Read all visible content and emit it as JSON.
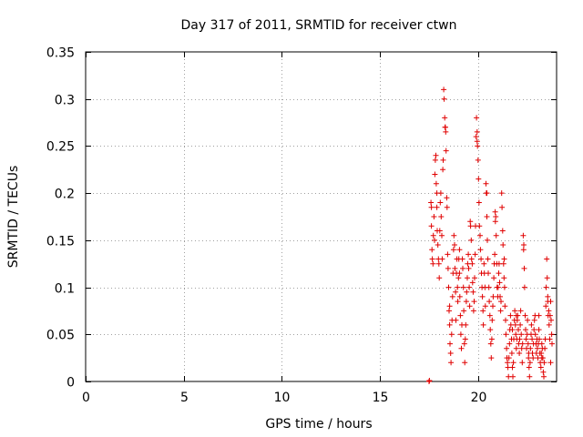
{
  "chart_data": {
    "type": "scatter",
    "title": "Day 317 of 2011, SRMTID for receiver ctwn",
    "xlabel": "GPS time / hours",
    "ylabel": "SRMTID / TECUs",
    "xlim": [
      0,
      24
    ],
    "ylim": [
      0,
      0.35
    ],
    "xticks": [
      0,
      5,
      10,
      15,
      20
    ],
    "xtick_labels": [
      "0",
      "5",
      "10",
      "15",
      "20"
    ],
    "yticks": [
      0,
      0.05,
      0.1,
      0.15,
      0.2,
      0.25,
      0.3,
      0.35
    ],
    "ytick_labels": [
      "0",
      "0.05",
      "0.1",
      "0.15",
      "0.2",
      "0.25",
      "0.3",
      "0.35"
    ],
    "grid": true,
    "marker": "+",
    "color": "#e00000",
    "series": [
      {
        "name": "SRMTID",
        "points": [
          [
            17.5,
            0.0
          ],
          [
            17.52,
            0.001
          ],
          [
            17.6,
            0.19
          ],
          [
            17.62,
            0.165
          ],
          [
            17.65,
            0.14
          ],
          [
            17.67,
            0.13
          ],
          [
            17.7,
            0.125
          ],
          [
            17.72,
            0.155
          ],
          [
            17.75,
            0.175
          ],
          [
            17.78,
            0.15
          ],
          [
            17.8,
            0.22
          ],
          [
            17.82,
            0.235
          ],
          [
            17.85,
            0.24
          ],
          [
            17.87,
            0.21
          ],
          [
            17.9,
            0.185
          ],
          [
            17.92,
            0.16
          ],
          [
            17.95,
            0.145
          ],
          [
            17.98,
            0.13
          ],
          [
            18.0,
            0.125
          ],
          [
            18.02,
            0.11
          ],
          [
            18.05,
            0.16
          ],
          [
            18.07,
            0.19
          ],
          [
            18.1,
            0.2
          ],
          [
            18.12,
            0.175
          ],
          [
            18.15,
            0.155
          ],
          [
            18.17,
            0.13
          ],
          [
            18.2,
            0.225
          ],
          [
            18.22,
            0.235
          ],
          [
            18.25,
            0.31
          ],
          [
            18.27,
            0.3
          ],
          [
            18.3,
            0.28
          ],
          [
            18.32,
            0.27
          ],
          [
            18.35,
            0.265
          ],
          [
            18.37,
            0.245
          ],
          [
            18.4,
            0.195
          ],
          [
            18.42,
            0.185
          ],
          [
            18.45,
            0.135
          ],
          [
            18.47,
            0.12
          ],
          [
            18.5,
            0.1
          ],
          [
            18.52,
            0.075
          ],
          [
            18.55,
            0.06
          ],
          [
            18.57,
            0.04
          ],
          [
            18.6,
            0.03
          ],
          [
            18.62,
            0.02
          ],
          [
            18.65,
            0.05
          ],
          [
            18.67,
            0.065
          ],
          [
            18.7,
            0.09
          ],
          [
            18.72,
            0.115
          ],
          [
            18.75,
            0.14
          ],
          [
            18.77,
            0.155
          ],
          [
            18.8,
            0.145
          ],
          [
            18.82,
            0.12
          ],
          [
            18.85,
            0.095
          ],
          [
            18.87,
            0.065
          ],
          [
            18.9,
            0.115
          ],
          [
            18.92,
            0.13
          ],
          [
            18.95,
            0.1
          ],
          [
            18.97,
            0.085
          ],
          [
            19.0,
            0.11
          ],
          [
            19.02,
            0.13
          ],
          [
            19.05,
            0.115
          ],
          [
            19.07,
            0.09
          ],
          [
            19.1,
            0.07
          ],
          [
            19.12,
            0.05
          ],
          [
            19.15,
            0.035
          ],
          [
            19.17,
            0.06
          ],
          [
            19.2,
            0.13
          ],
          [
            19.22,
            0.12
          ],
          [
            19.25,
            0.1
          ],
          [
            19.27,
            0.075
          ],
          [
            19.3,
            0.04
          ],
          [
            19.32,
            0.02
          ],
          [
            19.35,
            0.045
          ],
          [
            19.37,
            0.06
          ],
          [
            19.4,
            0.085
          ],
          [
            19.42,
            0.095
          ],
          [
            19.45,
            0.11
          ],
          [
            19.47,
            0.125
          ],
          [
            19.5,
            0.135
          ],
          [
            19.52,
            0.12
          ],
          [
            19.55,
            0.1
          ],
          [
            19.57,
            0.08
          ],
          [
            19.6,
            0.17
          ],
          [
            19.62,
            0.165
          ],
          [
            19.65,
            0.15
          ],
          [
            19.67,
            0.13
          ],
          [
            19.7,
            0.125
          ],
          [
            19.72,
            0.105
          ],
          [
            19.75,
            0.095
          ],
          [
            19.77,
            0.075
          ],
          [
            19.8,
            0.085
          ],
          [
            19.82,
            0.11
          ],
          [
            19.85,
            0.135
          ],
          [
            19.87,
            0.165
          ],
          [
            19.9,
            0.26
          ],
          [
            19.92,
            0.28
          ],
          [
            19.95,
            0.265
          ],
          [
            19.97,
            0.25
          ],
          [
            20.0,
            0.235
          ],
          [
            20.02,
            0.215
          ],
          [
            20.05,
            0.19
          ],
          [
            20.07,
            0.165
          ],
          [
            20.1,
            0.155
          ],
          [
            20.12,
            0.14
          ],
          [
            20.15,
            0.13
          ],
          [
            20.17,
            0.115
          ],
          [
            20.2,
            0.1
          ],
          [
            20.22,
            0.09
          ],
          [
            20.25,
            0.075
          ],
          [
            20.27,
            0.06
          ],
          [
            20.3,
            0.125
          ],
          [
            20.32,
            0.115
          ],
          [
            20.35,
            0.1
          ],
          [
            20.37,
            0.08
          ],
          [
            20.4,
            0.21
          ],
          [
            20.42,
            0.2
          ],
          [
            20.45,
            0.175
          ],
          [
            20.47,
            0.15
          ],
          [
            20.5,
            0.13
          ],
          [
            20.52,
            0.115
          ],
          [
            20.55,
            0.1
          ],
          [
            20.57,
            0.085
          ],
          [
            20.6,
            0.07
          ],
          [
            20.62,
            0.055
          ],
          [
            20.65,
            0.04
          ],
          [
            20.67,
            0.025
          ],
          [
            20.7,
            0.045
          ],
          [
            20.72,
            0.065
          ],
          [
            20.75,
            0.08
          ],
          [
            20.77,
            0.09
          ],
          [
            20.8,
            0.11
          ],
          [
            20.82,
            0.125
          ],
          [
            20.85,
            0.135
          ],
          [
            20.87,
            0.18
          ],
          [
            20.9,
            0.175
          ],
          [
            20.92,
            0.155
          ],
          [
            20.95,
            0.125
          ],
          [
            20.97,
            0.1
          ],
          [
            21.0,
            0.09
          ],
          [
            21.02,
            0.1
          ],
          [
            21.05,
            0.115
          ],
          [
            21.07,
            0.125
          ],
          [
            21.1,
            0.105
          ],
          [
            21.12,
            0.09
          ],
          [
            21.15,
            0.075
          ],
          [
            21.17,
            0.085
          ],
          [
            21.2,
            0.2
          ],
          [
            21.22,
            0.185
          ],
          [
            21.25,
            0.16
          ],
          [
            21.27,
            0.145
          ],
          [
            21.3,
            0.125
          ],
          [
            21.32,
            0.11
          ],
          [
            21.35,
            0.1
          ],
          [
            21.37,
            0.08
          ],
          [
            21.4,
            0.065
          ],
          [
            21.42,
            0.05
          ],
          [
            21.45,
            0.035
          ],
          [
            21.47,
            0.025
          ],
          [
            21.5,
            0.02
          ],
          [
            21.52,
            0.015
          ],
          [
            21.55,
            0.005
          ],
          [
            21.57,
            0.025
          ],
          [
            21.6,
            0.04
          ],
          [
            21.62,
            0.055
          ],
          [
            21.65,
            0.07
          ],
          [
            21.67,
            0.06
          ],
          [
            21.7,
            0.045
          ],
          [
            21.72,
            0.03
          ],
          [
            21.75,
            0.015
          ],
          [
            21.77,
            0.005
          ],
          [
            21.8,
            0.02
          ],
          [
            21.82,
            0.045
          ],
          [
            21.85,
            0.065
          ],
          [
            21.87,
            0.075
          ],
          [
            21.9,
            0.06
          ],
          [
            21.92,
            0.05
          ],
          [
            21.95,
            0.035
          ],
          [
            21.97,
            0.045
          ],
          [
            22.0,
            0.065
          ],
          [
            22.02,
            0.07
          ],
          [
            22.05,
            0.055
          ],
          [
            22.07,
            0.04
          ],
          [
            22.1,
            0.03
          ],
          [
            22.12,
            0.045
          ],
          [
            22.15,
            0.06
          ],
          [
            22.17,
            0.075
          ],
          [
            22.2,
            0.05
          ],
          [
            22.22,
            0.035
          ],
          [
            22.25,
            0.02
          ],
          [
            22.27,
            0.04
          ],
          [
            22.3,
            0.155
          ],
          [
            22.32,
            0.14
          ],
          [
            22.35,
            0.12
          ],
          [
            22.37,
            0.1
          ],
          [
            22.4,
            0.07
          ],
          [
            22.42,
            0.055
          ],
          [
            22.45,
            0.045
          ],
          [
            22.47,
            0.035
          ],
          [
            22.5,
            0.05
          ],
          [
            22.52,
            0.065
          ],
          [
            22.55,
            0.04
          ],
          [
            22.57,
            0.025
          ],
          [
            22.6,
            0.015
          ],
          [
            22.62,
            0.005
          ],
          [
            22.65,
            0.02
          ],
          [
            22.67,
            0.035
          ],
          [
            22.7,
            0.05
          ],
          [
            22.72,
            0.06
          ],
          [
            22.75,
            0.045
          ],
          [
            22.77,
            0.03
          ],
          [
            22.8,
            0.025
          ],
          [
            22.82,
            0.04
          ],
          [
            22.85,
            0.055
          ],
          [
            22.87,
            0.065
          ],
          [
            22.9,
            0.07
          ],
          [
            22.92,
            0.05
          ],
          [
            22.95,
            0.04
          ],
          [
            22.97,
            0.03
          ],
          [
            23.0,
            0.045
          ],
          [
            23.02,
            0.035
          ],
          [
            23.05,
            0.025
          ],
          [
            23.07,
            0.04
          ],
          [
            23.1,
            0.055
          ],
          [
            23.12,
            0.045
          ],
          [
            23.15,
            0.03
          ],
          [
            23.17,
            0.02
          ],
          [
            23.2,
            0.015
          ],
          [
            23.22,
            0.03
          ],
          [
            23.25,
            0.04
          ],
          [
            23.27,
            0.035
          ],
          [
            23.3,
            0.025
          ],
          [
            23.32,
            0.01
          ],
          [
            23.35,
            0.005
          ],
          [
            23.37,
            0.02
          ],
          [
            23.4,
            0.035
          ],
          [
            23.42,
            0.045
          ],
          [
            23.45,
            0.08
          ],
          [
            23.47,
            0.1
          ],
          [
            23.5,
            0.13
          ],
          [
            23.52,
            0.11
          ],
          [
            23.55,
            0.085
          ],
          [
            23.57,
            0.07
          ],
          [
            23.6,
            0.075
          ],
          [
            23.62,
            0.06
          ],
          [
            23.65,
            0.045
          ],
          [
            23.67,
            0.07
          ],
          [
            23.7,
            0.085
          ],
          [
            23.72,
            0.065
          ],
          [
            23.75,
            0.05
          ],
          [
            23.77,
            0.04
          ],
          [
            17.62,
            0.185
          ],
          [
            17.9,
            0.2
          ],
          [
            18.33,
            0.27
          ],
          [
            18.55,
            0.08
          ],
          [
            19.05,
            0.14
          ],
          [
            19.95,
            0.255
          ],
          [
            20.45,
            0.2
          ],
          [
            20.88,
            0.17
          ],
          [
            21.33,
            0.13
          ],
          [
            22.33,
            0.145
          ],
          [
            22.58,
            0.03
          ],
          [
            23.1,
            0.07
          ],
          [
            23.25,
            0.025
          ],
          [
            23.55,
            0.09
          ],
          [
            23.7,
            0.02
          ],
          [
            21.75,
            0.055
          ],
          [
            21.95,
            0.07
          ]
        ]
      }
    ]
  }
}
